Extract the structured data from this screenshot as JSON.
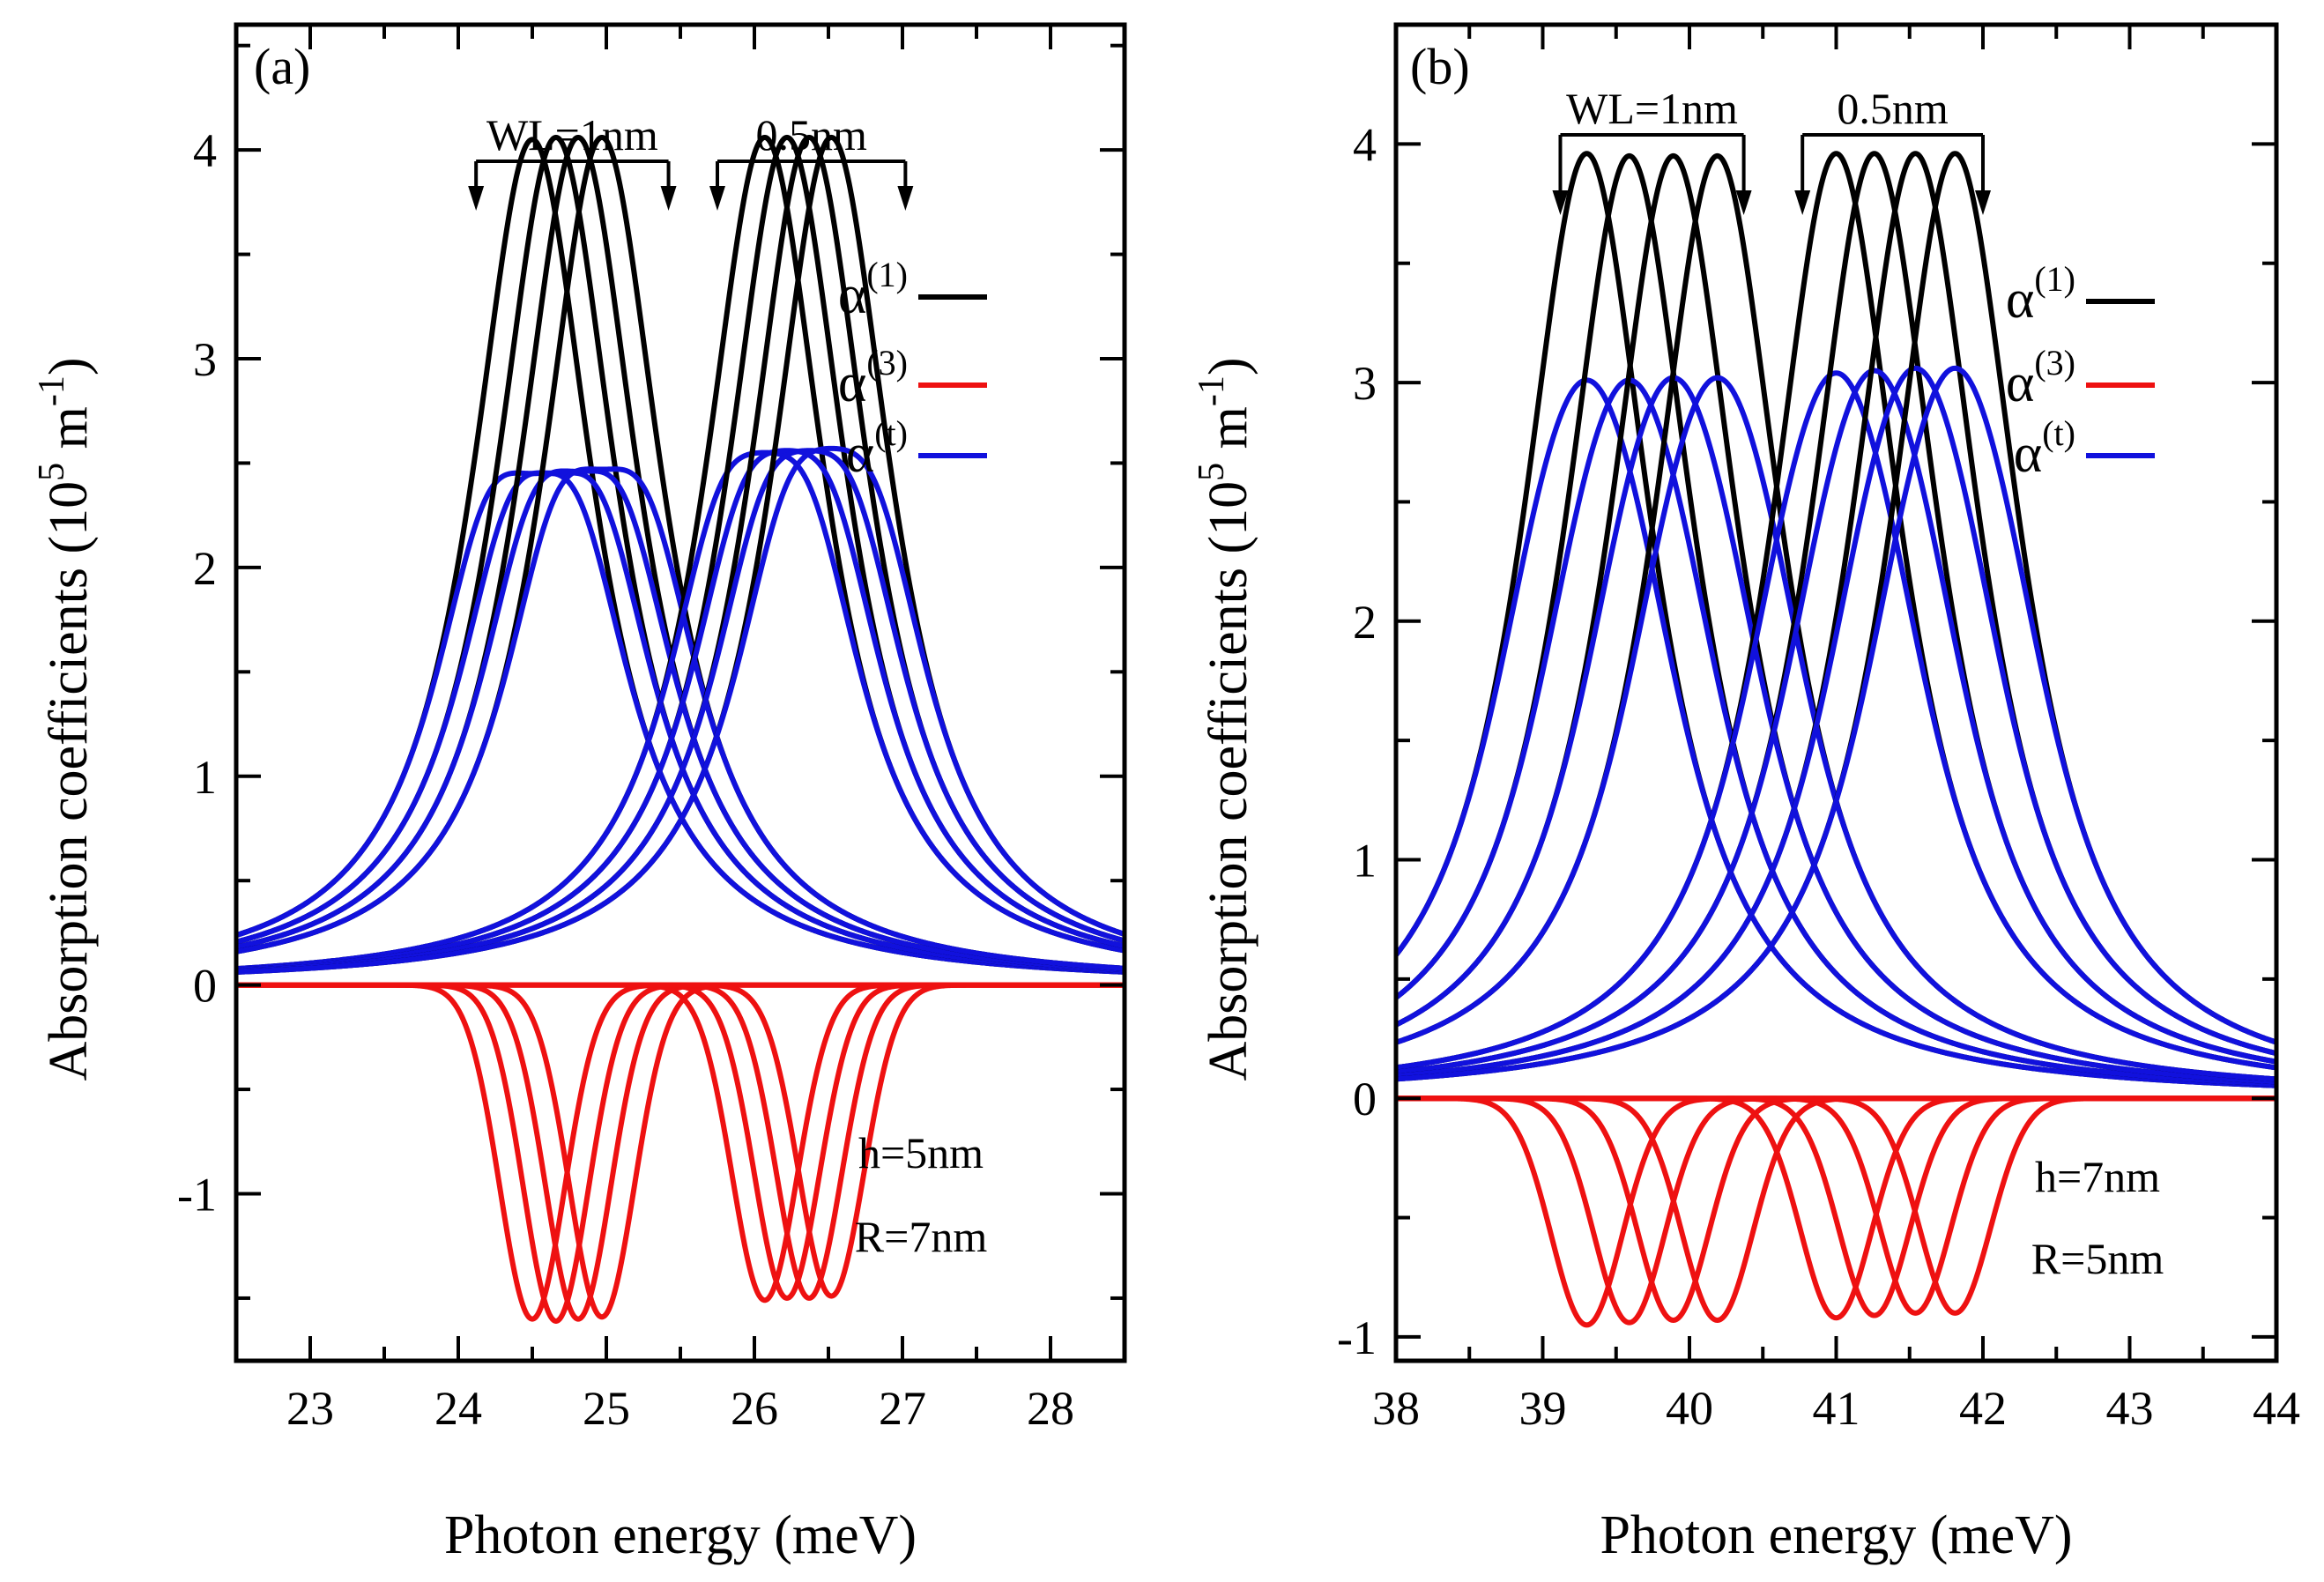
{
  "chart_data": [
    {
      "type": "line",
      "panel_label": "(a)",
      "xlabel": "Photon energy (meV)",
      "ylabel": "Absorption coefficients",
      "ylabel_unit": {
        "base": "10",
        "exp": "5",
        "unit": "m",
        "unit_exp": "-1"
      },
      "xlim": [
        22.5,
        28.5
      ],
      "ylim": [
        -1.8,
        4.6
      ],
      "xticks": [
        "23",
        "24",
        "25",
        "26",
        "27",
        "28"
      ],
      "yticks": [
        "-1",
        "0",
        "1",
        "2",
        "3",
        "4"
      ],
      "xtick_values": [
        23,
        24,
        25,
        26,
        27,
        28
      ],
      "ytick_values": [
        -1,
        0,
        1,
        2,
        3,
        4
      ],
      "legend": [
        {
          "symbol": "α",
          "sup": "(1)",
          "color": "#000000"
        },
        {
          "symbol": "α",
          "sup": "(3)",
          "color": "#ee1111"
        },
        {
          "symbol": "α",
          "sup": "(t)",
          "color": "#1111dd"
        }
      ],
      "annotations": {
        "group1": "WL=1nm",
        "group2": "0.5nm",
        "param1": "h=5nm",
        "param2": "R=7nm"
      },
      "groups": [
        {
          "peaks": [
            24.5,
            24.66,
            24.81,
            24.97
          ],
          "a1": [
            4.05,
            4.06,
            4.06,
            4.06
          ],
          "a3": [
            -1.6,
            -1.61,
            -1.6,
            -1.59
          ],
          "width": 0.5
        },
        {
          "peaks": [
            26.07,
            26.22,
            26.37,
            26.52
          ],
          "a1": [
            4.06,
            4.06,
            4.06,
            4.06
          ],
          "a3": [
            -1.51,
            -1.5,
            -1.5,
            -1.49
          ],
          "width": 0.5
        }
      ],
      "arrows": [
        24.12,
        25.42,
        25.75,
        27.02
      ]
    },
    {
      "type": "line",
      "panel_label": "(b)",
      "xlabel": "Photon energy (meV)",
      "ylabel": "Absorption coefficients",
      "ylabel_unit": {
        "base": "10",
        "exp": "5",
        "unit": "m",
        "unit_exp": "-1"
      },
      "xlim": [
        38,
        44
      ],
      "ylim": [
        -1.1,
        4.5
      ],
      "xticks": [
        "38",
        "39",
        "40",
        "41",
        "42",
        "43",
        "44"
      ],
      "yticks": [
        "-1",
        "0",
        "1",
        "2",
        "3",
        "4"
      ],
      "xtick_values": [
        38,
        39,
        40,
        41,
        42,
        43,
        44
      ],
      "ytick_values": [
        -1,
        0,
        1,
        2,
        3,
        4
      ],
      "legend": [
        {
          "symbol": "α",
          "sup": "(1)",
          "color": "#000000"
        },
        {
          "symbol": "α",
          "sup": "(3)",
          "color": "#ee1111"
        },
        {
          "symbol": "α",
          "sup": "(t)",
          "color": "#1111dd"
        }
      ],
      "annotations": {
        "group1": "WL=1nm",
        "group2": "0.5nm",
        "param1": "h=7nm",
        "param2": "R=5nm"
      },
      "groups": [
        {
          "peaks": [
            39.3,
            39.59,
            39.89,
            40.19
          ],
          "a1": [
            3.96,
            3.95,
            3.95,
            3.95
          ],
          "a3": [
            -0.95,
            -0.94,
            -0.93,
            -0.93
          ],
          "width": 0.55
        },
        {
          "peaks": [
            41.0,
            41.26,
            41.54,
            41.81
          ],
          "a1": [
            3.96,
            3.96,
            3.96,
            3.96
          ],
          "a3": [
            -0.92,
            -0.91,
            -0.9,
            -0.9
          ],
          "width": 0.55
        }
      ],
      "arrows": [
        39.12,
        40.37,
        40.77,
        42.0
      ]
    }
  ]
}
